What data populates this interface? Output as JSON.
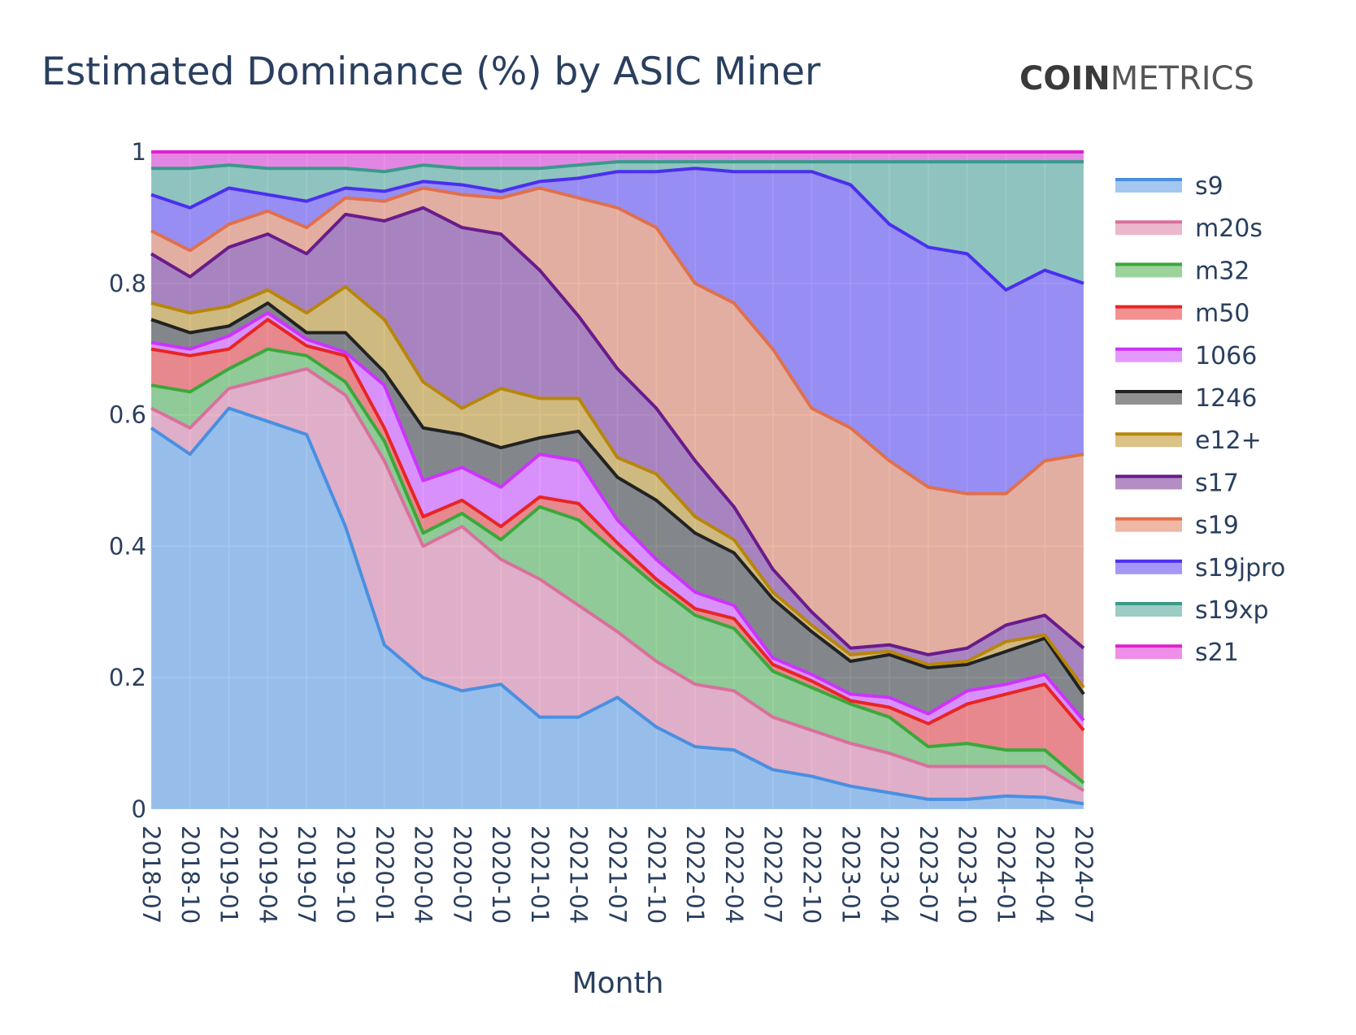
{
  "chart_data": {
    "type": "area",
    "stacked": true,
    "title": "Estimated Dominance (%) by ASIC Miner",
    "brand": "COINMETRICS",
    "brand_parts": [
      "COIN",
      "METRICS"
    ],
    "xlabel": "Month",
    "ylabel": "",
    "ylim": [
      0,
      1
    ],
    "yticks": [
      "0",
      "0.2",
      "0.4",
      "0.6",
      "0.8",
      "1"
    ],
    "ytick_values": [
      0,
      0.2,
      0.4,
      0.6,
      0.8,
      1
    ],
    "grid": true,
    "legend_position": "right",
    "x": [
      "2018-07",
      "2018-10",
      "2019-01",
      "2019-04",
      "2019-07",
      "2019-10",
      "2020-01",
      "2020-04",
      "2020-07",
      "2020-10",
      "2021-01",
      "2021-04",
      "2021-07",
      "2021-10",
      "2022-01",
      "2022-04",
      "2022-07",
      "2022-10",
      "2023-01",
      "2023-04",
      "2023-07",
      "2023-10",
      "2024-01",
      "2024-04",
      "2024-07"
    ],
    "series": [
      {
        "name": "s9",
        "color": "#4a8fe0",
        "values": [
          0.58,
          0.54,
          0.61,
          0.59,
          0.57,
          0.43,
          0.25,
          0.2,
          0.18,
          0.19,
          0.14,
          0.14,
          0.17,
          0.125,
          0.095,
          0.09,
          0.06,
          0.05,
          0.035,
          0.025,
          0.015,
          0.015,
          0.02,
          0.018,
          0.008
        ]
      },
      {
        "name": "m20s",
        "color": "#d9709c",
        "values": [
          0.03,
          0.04,
          0.03,
          0.065,
          0.1,
          0.2,
          0.28,
          0.2,
          0.25,
          0.19,
          0.21,
          0.17,
          0.1,
          0.1,
          0.095,
          0.09,
          0.08,
          0.07,
          0.065,
          0.06,
          0.05,
          0.05,
          0.045,
          0.047,
          0.02
        ]
      },
      {
        "name": "m32",
        "color": "#3aa83a",
        "values": [
          0.035,
          0.055,
          0.03,
          0.045,
          0.02,
          0.02,
          0.03,
          0.02,
          0.02,
          0.03,
          0.11,
          0.13,
          0.12,
          0.115,
          0.105,
          0.095,
          0.07,
          0.065,
          0.06,
          0.055,
          0.03,
          0.035,
          0.025,
          0.025,
          0.012
        ]
      },
      {
        "name": "m50",
        "color": "#e82424",
        "values": [
          0.055,
          0.055,
          0.03,
          0.045,
          0.015,
          0.04,
          0.02,
          0.025,
          0.02,
          0.02,
          0.015,
          0.025,
          0.015,
          0.01,
          0.01,
          0.015,
          0.01,
          0.01,
          0.005,
          0.015,
          0.035,
          0.06,
          0.085,
          0.1,
          0.08
        ]
      },
      {
        "name": "1066",
        "color": "#cc33ff",
        "values": [
          0.01,
          0.01,
          0.02,
          0.01,
          0.01,
          0.005,
          0.065,
          0.055,
          0.05,
          0.06,
          0.065,
          0.065,
          0.035,
          0.03,
          0.025,
          0.02,
          0.01,
          0.01,
          0.01,
          0.015,
          0.015,
          0.02,
          0.015,
          0.015,
          0.015
        ]
      },
      {
        "name": "1246",
        "color": "#222222",
        "values": [
          0.035,
          0.025,
          0.015,
          0.015,
          0.01,
          0.03,
          0.02,
          0.08,
          0.05,
          0.06,
          0.025,
          0.045,
          0.065,
          0.09,
          0.09,
          0.08,
          0.09,
          0.065,
          0.05,
          0.065,
          0.07,
          0.04,
          0.05,
          0.055,
          0.04
        ]
      },
      {
        "name": "e12+",
        "color": "#b8860b",
        "values": [
          0.025,
          0.03,
          0.03,
          0.02,
          0.03,
          0.07,
          0.08,
          0.07,
          0.04,
          0.09,
          0.06,
          0.05,
          0.03,
          0.04,
          0.025,
          0.02,
          0.01,
          0.01,
          0.01,
          0.005,
          0.005,
          0.005,
          0.015,
          0.005,
          0.01
        ]
      },
      {
        "name": "s17",
        "color": "#6a1b8a",
        "values": [
          0.075,
          0.055,
          0.09,
          0.085,
          0.09,
          0.11,
          0.15,
          0.265,
          0.275,
          0.235,
          0.195,
          0.125,
          0.135,
          0.1,
          0.085,
          0.05,
          0.035,
          0.02,
          0.01,
          0.01,
          0.015,
          0.02,
          0.025,
          0.03,
          0.06
        ]
      },
      {
        "name": "s19",
        "color": "#e0704c",
        "values": [
          0.035,
          0.04,
          0.035,
          0.035,
          0.04,
          0.025,
          0.03,
          0.03,
          0.05,
          0.055,
          0.125,
          0.18,
          0.245,
          0.275,
          0.27,
          0.31,
          0.335,
          0.31,
          0.335,
          0.28,
          0.255,
          0.235,
          0.2,
          0.235,
          0.295
        ]
      },
      {
        "name": "s19jpro",
        "color": "#4a2ff0",
        "values": [
          0.055,
          0.065,
          0.055,
          0.025,
          0.04,
          0.015,
          0.015,
          0.01,
          0.015,
          0.01,
          0.01,
          0.03,
          0.055,
          0.085,
          0.175,
          0.2,
          0.27,
          0.36,
          0.37,
          0.36,
          0.365,
          0.365,
          0.31,
          0.29,
          0.26
        ]
      },
      {
        "name": "s19xp",
        "color": "#3a9a8a",
        "values": [
          0.04,
          0.06,
          0.035,
          0.04,
          0.05,
          0.03,
          0.03,
          0.025,
          0.025,
          0.035,
          0.02,
          0.02,
          0.015,
          0.015,
          0.01,
          0.015,
          0.015,
          0.015,
          0.035,
          0.095,
          0.13,
          0.14,
          0.195,
          0.165,
          0.185
        ]
      },
      {
        "name": "s21",
        "color": "#e020d0",
        "values": [
          0.025,
          0.025,
          0.02,
          0.025,
          0.025,
          0.025,
          0.03,
          0.02,
          0.025,
          0.025,
          0.025,
          0.02,
          0.015,
          0.015,
          0.015,
          0.015,
          0.015,
          0.015,
          0.015,
          0.015,
          0.015,
          0.015,
          0.015,
          0.015,
          0.015
        ]
      }
    ]
  }
}
